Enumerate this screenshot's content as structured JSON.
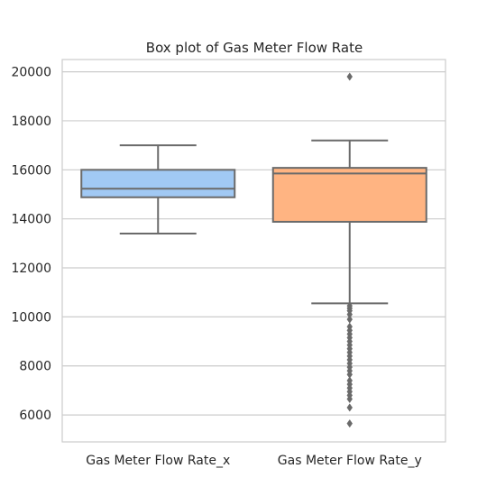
{
  "chart_data": {
    "type": "box",
    "title": "Box plot of Gas Meter Flow Rate",
    "xlabel": "",
    "ylabel": "",
    "ylim": [
      4900,
      20500
    ],
    "yticks": [
      6000,
      8000,
      10000,
      12000,
      14000,
      16000,
      18000,
      20000
    ],
    "yticklabels": [
      "6000",
      "8000",
      "10000",
      "12000",
      "14000",
      "16000",
      "18000",
      "20000"
    ],
    "grid": true,
    "categories": [
      "Gas Meter Flow Rate_x",
      "Gas Meter Flow Rate_y"
    ],
    "boxes": [
      {
        "category": "Gas Meter Flow Rate_x",
        "color": "#a1c9f4",
        "whisker_low": 13400,
        "q1": 14880,
        "median": 15230,
        "q3": 16000,
        "whisker_high": 17000,
        "outliers": []
      },
      {
        "category": "Gas Meter Flow Rate_y",
        "color": "#ffb482",
        "whisker_low": 10550,
        "q1": 13880,
        "median": 15850,
        "q3": 16080,
        "whisker_high": 17200,
        "outliers": [
          19800,
          10450,
          10350,
          10250,
          10100,
          9900,
          9600,
          9450,
          9300,
          9150,
          9000,
          8850,
          8700,
          8550,
          8400,
          8250,
          8100,
          7950,
          7800,
          7650,
          7400,
          7250,
          7100,
          6950,
          6800,
          6650,
          6300,
          5650
        ]
      }
    ]
  }
}
